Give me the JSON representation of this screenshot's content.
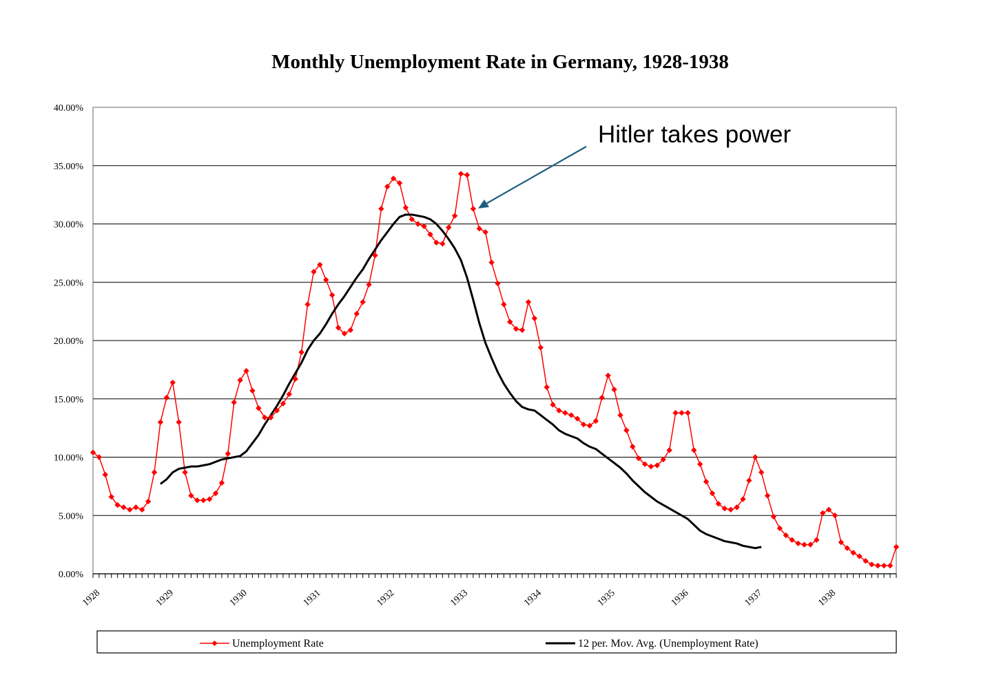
{
  "chart_data": {
    "type": "line",
    "title": "Monthly Unemployment Rate in Germany, 1928-1938",
    "xlabel": "",
    "ylabel": "",
    "x_tick_labels": [
      "1928",
      "1929",
      "1930",
      "1931",
      "1932",
      "1933",
      "1934",
      "1935",
      "1936",
      "1937",
      "1938"
    ],
    "y_tick_labels": [
      "0.00%",
      "5.00%",
      "10.00%",
      "15.00%",
      "20.00%",
      "25.00%",
      "30.00%",
      "35.00%",
      "40.00%"
    ],
    "ylim": [
      0,
      40
    ],
    "xlim": [
      "1928-01",
      "1938-12"
    ],
    "grid": "horizontal",
    "legend_position": "bottom",
    "annotation": {
      "text": "Hitler takes power",
      "points_to": "1933-05"
    },
    "series": [
      {
        "name": "Unemployment Rate",
        "color": "#ff0000",
        "marker": "diamond",
        "start": "1928-01",
        "values": [
          10.4,
          10.0,
          8.5,
          6.6,
          5.9,
          5.7,
          5.5,
          5.7,
          5.5,
          6.2,
          8.7,
          13.0,
          15.1,
          16.4,
          13.0,
          8.7,
          6.7,
          6.3,
          6.3,
          6.4,
          6.9,
          7.8,
          10.3,
          14.7,
          16.6,
          17.4,
          15.7,
          14.2,
          13.4,
          13.4,
          14.0,
          14.6,
          15.4,
          16.7,
          19.0,
          23.1,
          25.9,
          26.5,
          25.2,
          23.9,
          21.1,
          20.6,
          20.9,
          22.3,
          23.3,
          24.8,
          27.3,
          31.3,
          33.2,
          33.9,
          33.5,
          31.4,
          30.4,
          30.0,
          29.8,
          29.1,
          28.4,
          28.3,
          29.7,
          30.7,
          34.3,
          34.2,
          31.3,
          29.6,
          29.3,
          26.7,
          24.9,
          23.1,
          21.6,
          21.0,
          20.9,
          23.3,
          21.9,
          19.4,
          16.0,
          14.5,
          14.0,
          13.8,
          13.6,
          13.3,
          12.8,
          12.7,
          13.1,
          15.1,
          17.0,
          15.8,
          13.6,
          12.3,
          10.9,
          9.9,
          9.4,
          9.2,
          9.3,
          9.8,
          10.6,
          13.8,
          13.8,
          13.8,
          10.6,
          9.4,
          7.9,
          6.9,
          6.0,
          5.6,
          5.5,
          5.7,
          6.4,
          8.0,
          10.0,
          8.7,
          6.7,
          4.9,
          3.9,
          3.3,
          2.9,
          2.6,
          2.5,
          2.5,
          2.9,
          5.2,
          5.5,
          5.0,
          2.7,
          2.2,
          1.8,
          1.5,
          1.1,
          0.8,
          0.7,
          0.7,
          0.7,
          2.3
        ]
      },
      {
        "name": "12 per. Mov. Avg. (Unemployment Rate)",
        "color": "#000000",
        "marker": "none",
        "start": "1928-12",
        "values": [
          7.7,
          8.1,
          8.7,
          9.0,
          9.1,
          9.2,
          9.2,
          9.3,
          9.4,
          9.6,
          9.8,
          9.9,
          10.0,
          10.1,
          10.5,
          11.2,
          11.9,
          12.8,
          13.6,
          14.4,
          15.3,
          16.3,
          17.2,
          18.1,
          19.2,
          20.0,
          20.6,
          21.4,
          22.3,
          23.1,
          23.8,
          24.6,
          25.4,
          26.1,
          27.0,
          27.8,
          28.6,
          29.3,
          30.0,
          30.6,
          30.8,
          30.8,
          30.7,
          30.6,
          30.4,
          30.0,
          29.4,
          28.7,
          27.9,
          26.9,
          25.4,
          23.5,
          21.5,
          19.8,
          18.5,
          17.3,
          16.3,
          15.5,
          14.8,
          14.3,
          14.1,
          14.0,
          13.6,
          13.2,
          12.8,
          12.3,
          12.0,
          11.8,
          11.6,
          11.2,
          10.9,
          10.7,
          10.3,
          9.9,
          9.5,
          9.1,
          8.6,
          8.0,
          7.5,
          7.0,
          6.6,
          6.2,
          5.9,
          5.6,
          5.3,
          5.0,
          4.7,
          4.2,
          3.7,
          3.4,
          3.2,
          3.0,
          2.8,
          2.7,
          2.6,
          2.4,
          2.3,
          2.2,
          2.3
        ]
      }
    ]
  }
}
